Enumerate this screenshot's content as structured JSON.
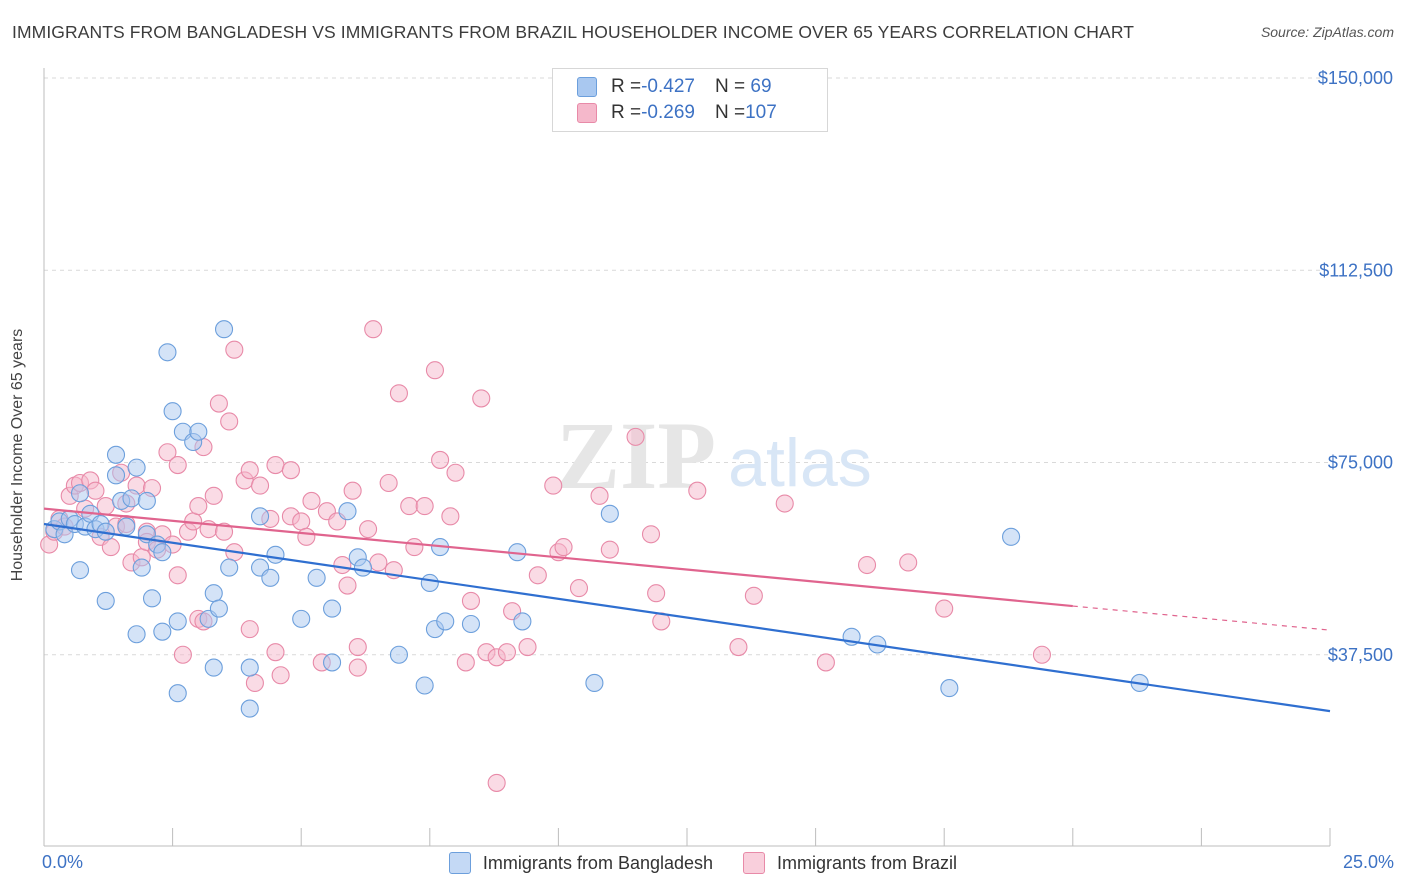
{
  "title": "IMMIGRANTS FROM BANGLADESH VS IMMIGRANTS FROM BRAZIL HOUSEHOLDER INCOME OVER 65 YEARS CORRELATION CHART",
  "source": "Source: ZipAtlas.com",
  "watermark": {
    "zip": "ZIP",
    "atlas": "atlas"
  },
  "legend": {
    "rows": [
      {
        "r_label": "R = ",
        "r_value": "-0.427",
        "n_label": "N = ",
        "n_value": " 69",
        "color": "#a9c8f0"
      },
      {
        "r_label": "R = ",
        "r_value": "-0.269",
        "n_label": "N = ",
        "n_value": "107",
        "color": "#f5b8cb"
      }
    ]
  },
  "colors": {
    "blue_fill": "#a9c8f0",
    "blue_stroke": "#6c9fdc",
    "blue_line": "#2f6fd0",
    "pink_fill": "#f5b8cb",
    "pink_stroke": "#e88aa8",
    "pink_line": "#e0648e",
    "axis_label": "#3d72c4"
  },
  "chart_data": {
    "type": "scatter",
    "ylabel": "Householder Income Over 65 years",
    "xlim": [
      0,
      25
    ],
    "ylim": [
      0,
      155000
    ],
    "x_tick_labels": [
      "0.0%",
      "25.0%"
    ],
    "y_ticks": [
      37500,
      75000,
      112500,
      150000
    ],
    "y_tick_labels": [
      "$37,500",
      "$75,000",
      "$112,500",
      "$150,000"
    ],
    "grid": true,
    "legend_position": "top-center",
    "series": [
      {
        "name": "Immigrants from Bangladesh",
        "color": "#a9c8f0",
        "trend": {
          "x": [
            0,
            25
          ],
          "y": [
            63000,
            26500
          ]
        },
        "points": [
          [
            0.2,
            62000
          ],
          [
            0.3,
            63500
          ],
          [
            0.4,
            61000
          ],
          [
            0.5,
            64000
          ],
          [
            0.6,
            63000
          ],
          [
            0.7,
            69000
          ],
          [
            0.8,
            62500
          ],
          [
            0.9,
            65000
          ],
          [
            1.0,
            62000
          ],
          [
            1.1,
            63000
          ],
          [
            1.2,
            61500
          ],
          [
            1.4,
            72500
          ],
          [
            1.4,
            76500
          ],
          [
            1.5,
            67500
          ],
          [
            1.6,
            62500
          ],
          [
            1.7,
            68000
          ],
          [
            1.8,
            74000
          ],
          [
            2.0,
            61000
          ],
          [
            1.2,
            48000
          ],
          [
            0.7,
            54000
          ],
          [
            1.8,
            41500
          ],
          [
            1.9,
            54500
          ],
          [
            2.0,
            67500
          ],
          [
            2.1,
            48500
          ],
          [
            2.2,
            59000
          ],
          [
            2.3,
            42000
          ],
          [
            2.3,
            57500
          ],
          [
            2.4,
            96500
          ],
          [
            2.5,
            85000
          ],
          [
            2.6,
            44000
          ],
          [
            2.6,
            30000
          ],
          [
            2.7,
            81000
          ],
          [
            2.9,
            79000
          ],
          [
            3.0,
            81000
          ],
          [
            3.2,
            44500
          ],
          [
            3.3,
            49500
          ],
          [
            3.3,
            35000
          ],
          [
            3.4,
            46500
          ],
          [
            3.5,
            101000
          ],
          [
            3.6,
            54500
          ],
          [
            4.0,
            27000
          ],
          [
            4.0,
            35000
          ],
          [
            4.2,
            64500
          ],
          [
            4.2,
            54500
          ],
          [
            4.4,
            52500
          ],
          [
            4.5,
            57000
          ],
          [
            5.0,
            44500
          ],
          [
            5.3,
            52500
          ],
          [
            5.6,
            46500
          ],
          [
            5.6,
            36000
          ],
          [
            5.9,
            65500
          ],
          [
            6.1,
            56500
          ],
          [
            6.2,
            54500
          ],
          [
            6.9,
            37500
          ],
          [
            7.4,
            31500
          ],
          [
            7.5,
            51500
          ],
          [
            7.6,
            42500
          ],
          [
            7.7,
            58500
          ],
          [
            7.8,
            44000
          ],
          [
            8.3,
            43500
          ],
          [
            9.2,
            57500
          ],
          [
            9.3,
            44000
          ],
          [
            10.7,
            32000
          ],
          [
            11.0,
            65000
          ],
          [
            15.7,
            41000
          ],
          [
            16.2,
            39500
          ],
          [
            17.6,
            31000
          ],
          [
            18.8,
            60500
          ],
          [
            21.3,
            32000
          ]
        ]
      },
      {
        "name": "Immigrants from Brazil",
        "color": "#f5b8cb",
        "trend": {
          "x": [
            0,
            20
          ],
          "y": [
            66000,
            47000
          ]
        },
        "trend_dash": {
          "x": [
            20,
            25
          ],
          "y": [
            47000,
            42300
          ]
        },
        "points": [
          [
            0.1,
            59000
          ],
          [
            0.2,
            61500
          ],
          [
            0.3,
            64000
          ],
          [
            0.4,
            62500
          ],
          [
            0.5,
            68500
          ],
          [
            0.6,
            70500
          ],
          [
            0.7,
            71000
          ],
          [
            0.8,
            66000
          ],
          [
            0.9,
            71500
          ],
          [
            1.0,
            69500
          ],
          [
            1.1,
            60500
          ],
          [
            1.2,
            66500
          ],
          [
            1.3,
            58500
          ],
          [
            1.4,
            62500
          ],
          [
            1.5,
            73000
          ],
          [
            1.6,
            67000
          ],
          [
            1.6,
            63000
          ],
          [
            1.7,
            55500
          ],
          [
            1.8,
            70500
          ],
          [
            1.9,
            56500
          ],
          [
            2.0,
            61500
          ],
          [
            2.0,
            59500
          ],
          [
            2.1,
            70000
          ],
          [
            2.2,
            58000
          ],
          [
            2.3,
            61000
          ],
          [
            2.4,
            77000
          ],
          [
            2.5,
            59000
          ],
          [
            2.6,
            53000
          ],
          [
            2.6,
            74500
          ],
          [
            2.7,
            37500
          ],
          [
            2.8,
            61500
          ],
          [
            2.9,
            63500
          ],
          [
            3.0,
            66500
          ],
          [
            3.0,
            44500
          ],
          [
            3.1,
            44000
          ],
          [
            3.1,
            78000
          ],
          [
            3.2,
            62000
          ],
          [
            3.3,
            68500
          ],
          [
            3.4,
            86500
          ],
          [
            3.5,
            61500
          ],
          [
            3.6,
            83000
          ],
          [
            3.7,
            57500
          ],
          [
            3.7,
            97000
          ],
          [
            3.9,
            71500
          ],
          [
            4.0,
            73500
          ],
          [
            4.0,
            42500
          ],
          [
            4.1,
            32000
          ],
          [
            4.2,
            70500
          ],
          [
            4.4,
            64000
          ],
          [
            4.5,
            38000
          ],
          [
            4.5,
            74500
          ],
          [
            4.6,
            33500
          ],
          [
            4.8,
            64500
          ],
          [
            4.8,
            73500
          ],
          [
            5.0,
            63500
          ],
          [
            5.1,
            60500
          ],
          [
            5.2,
            67500
          ],
          [
            5.4,
            36000
          ],
          [
            5.5,
            65500
          ],
          [
            5.7,
            63500
          ],
          [
            5.8,
            55000
          ],
          [
            5.9,
            51000
          ],
          [
            6.0,
            69500
          ],
          [
            6.1,
            35000
          ],
          [
            6.1,
            39000
          ],
          [
            6.3,
            62000
          ],
          [
            6.4,
            101000
          ],
          [
            6.5,
            55500
          ],
          [
            6.7,
            71000
          ],
          [
            6.8,
            54000
          ],
          [
            6.9,
            88500
          ],
          [
            7.1,
            66500
          ],
          [
            7.2,
            58500
          ],
          [
            7.4,
            66500
          ],
          [
            7.6,
            93000
          ],
          [
            7.7,
            75500
          ],
          [
            7.9,
            64500
          ],
          [
            8.0,
            73000
          ],
          [
            8.2,
            36000
          ],
          [
            8.3,
            48000
          ],
          [
            8.5,
            87500
          ],
          [
            8.6,
            38000
          ],
          [
            8.8,
            37000
          ],
          [
            8.8,
            12500
          ],
          [
            9.0,
            38000
          ],
          [
            9.1,
            46000
          ],
          [
            9.4,
            39000
          ],
          [
            9.6,
            53000
          ],
          [
            9.9,
            70500
          ],
          [
            10.0,
            57500
          ],
          [
            10.1,
            58500
          ],
          [
            10.4,
            50500
          ],
          [
            10.8,
            68500
          ],
          [
            11.0,
            58000
          ],
          [
            11.5,
            80000
          ],
          [
            11.8,
            61000
          ],
          [
            11.9,
            49500
          ],
          [
            12.0,
            44000
          ],
          [
            12.7,
            69500
          ],
          [
            13.5,
            39000
          ],
          [
            13.8,
            49000
          ],
          [
            14.4,
            67000
          ],
          [
            15.2,
            36000
          ],
          [
            16.0,
            55000
          ],
          [
            16.8,
            55500
          ],
          [
            17.5,
            46500
          ],
          [
            19.4,
            37500
          ]
        ]
      }
    ]
  }
}
